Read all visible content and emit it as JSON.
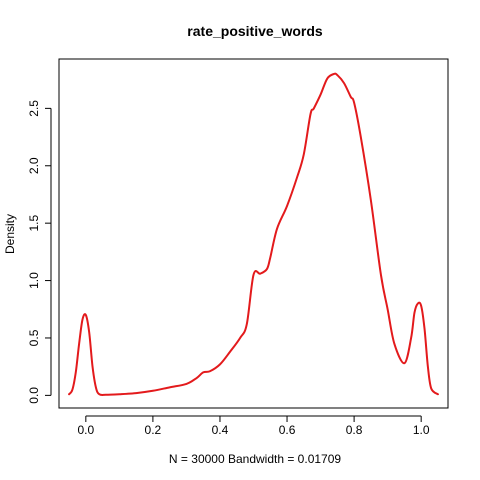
{
  "chart_data": {
    "type": "line",
    "title": "rate_positive_words",
    "xlabel": "N = 30000   Bandwidth = 0.01709",
    "ylabel": "Density",
    "xlim": [
      -0.05,
      1.05
    ],
    "ylim": [
      0,
      2.8
    ],
    "x_ticks": [
      0.0,
      0.2,
      0.4,
      0.6,
      0.8,
      1.0
    ],
    "x_tick_labels": [
      "0.0",
      "0.2",
      "0.4",
      "0.6",
      "0.8",
      "1.0"
    ],
    "y_ticks": [
      0.0,
      0.5,
      1.0,
      1.5,
      2.0,
      2.5
    ],
    "y_tick_labels": [
      "0.0",
      "0.5",
      "1.0",
      "1.5",
      "2.0",
      "2.5"
    ],
    "grid": false,
    "series": [
      {
        "color": "#e31a1c",
        "x": [
          -0.05,
          -0.04,
          -0.03,
          -0.02,
          -0.01,
          0.0,
          0.01,
          0.02,
          0.03,
          0.04,
          0.06,
          0.1,
          0.15,
          0.2,
          0.25,
          0.3,
          0.33,
          0.35,
          0.37,
          0.4,
          0.43,
          0.46,
          0.48,
          0.5,
          0.52,
          0.54,
          0.55,
          0.57,
          0.6,
          0.63,
          0.65,
          0.67,
          0.68,
          0.7,
          0.72,
          0.74,
          0.75,
          0.77,
          0.79,
          0.8,
          0.82,
          0.85,
          0.88,
          0.9,
          0.92,
          0.95,
          0.97,
          0.98,
          0.99,
          1.0,
          1.01,
          1.02,
          1.03,
          1.05
        ],
        "y": [
          0.01,
          0.05,
          0.2,
          0.45,
          0.66,
          0.7,
          0.55,
          0.25,
          0.07,
          0.01,
          0.005,
          0.01,
          0.02,
          0.04,
          0.07,
          0.1,
          0.15,
          0.2,
          0.21,
          0.27,
          0.38,
          0.5,
          0.62,
          1.05,
          1.06,
          1.1,
          1.2,
          1.45,
          1.65,
          1.9,
          2.1,
          2.45,
          2.5,
          2.62,
          2.76,
          2.8,
          2.79,
          2.72,
          2.6,
          2.55,
          2.25,
          1.7,
          1.05,
          0.75,
          0.45,
          0.28,
          0.5,
          0.72,
          0.8,
          0.78,
          0.58,
          0.25,
          0.06,
          0.01
        ]
      }
    ]
  }
}
